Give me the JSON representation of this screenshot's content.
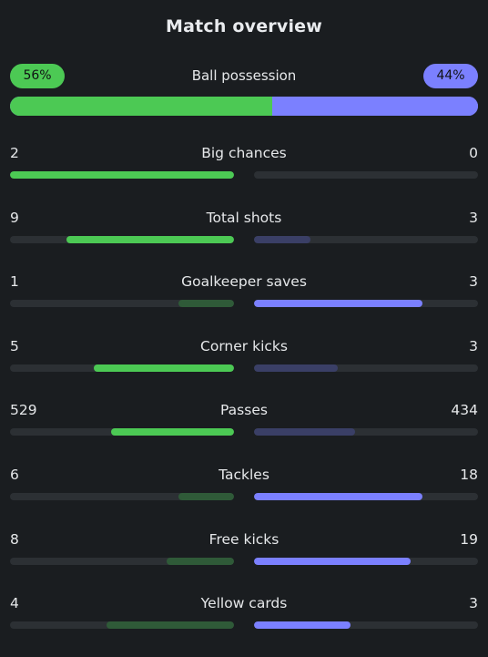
{
  "title": "Match overview",
  "possession": {
    "label": "Ball possession",
    "home": "56%",
    "away": "44%",
    "home_value": 56,
    "away_value": 44
  },
  "colors": {
    "home_win": "#4cc954",
    "home_lose": "#2f5a38",
    "away_win": "#7b80ff",
    "away_lose": "#3a3f66",
    "track": "#2c3034"
  },
  "stats": [
    {
      "label": "Big chances",
      "home": "2",
      "away": "0",
      "home_fill": 1.0,
      "away_fill": 0.0,
      "winner": "home"
    },
    {
      "label": "Total shots",
      "home": "9",
      "away": "3",
      "home_fill": 0.75,
      "away_fill": 0.25,
      "winner": "home"
    },
    {
      "label": "Goalkeeper saves",
      "home": "1",
      "away": "3",
      "home_fill": 0.25,
      "away_fill": 0.75,
      "winner": "away"
    },
    {
      "label": "Corner kicks",
      "home": "5",
      "away": "3",
      "home_fill": 0.625,
      "away_fill": 0.375,
      "winner": "home"
    },
    {
      "label": "Passes",
      "home": "529",
      "away": "434",
      "home_fill": 0.55,
      "away_fill": 0.45,
      "winner": "home"
    },
    {
      "label": "Tackles",
      "home": "6",
      "away": "18",
      "home_fill": 0.25,
      "away_fill": 0.75,
      "winner": "away"
    },
    {
      "label": "Free kicks",
      "home": "8",
      "away": "19",
      "home_fill": 0.3,
      "away_fill": 0.7,
      "winner": "away"
    },
    {
      "label": "Yellow cards",
      "home": "4",
      "away": "3",
      "home_fill": 0.57,
      "away_fill": 0.43,
      "winner": "away"
    }
  ]
}
